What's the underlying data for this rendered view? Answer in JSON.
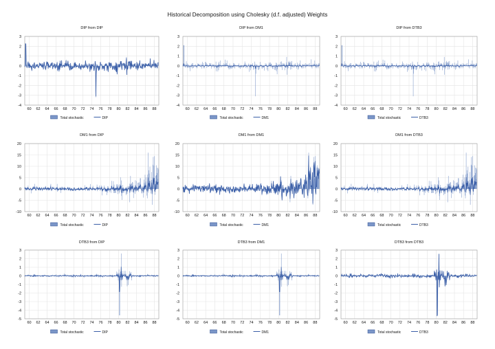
{
  "title": "Historical Decomposition using Cholesky (d.f. adjusted) Weights",
  "colors": {
    "bar": "#7b96c8",
    "line": "#3a5ea7",
    "grid": "#e4e4e4",
    "axis": "#9a9a9a"
  },
  "chart_data": [
    {
      "type": "bar+line",
      "title": "DIP from DIP",
      "row": 0,
      "col": 0,
      "ylim": [
        -4,
        3
      ],
      "yticks": [
        3,
        2,
        1,
        0,
        -1,
        -2,
        -3,
        -4
      ],
      "xticks": [
        "60",
        "62",
        "64",
        "66",
        "68",
        "70",
        "72",
        "74",
        "76",
        "78",
        "80",
        "82",
        "84",
        "86",
        "88"
      ],
      "x_range": [
        "1959",
        "1989"
      ],
      "legend": [
        "Total stochastic",
        "DIP"
      ],
      "series": [
        {
          "name": "Total stochastic",
          "kind": "bar",
          "amp": 0.35
        },
        {
          "name": "DIP",
          "kind": "line",
          "amp": 0.35
        }
      ],
      "notable": [
        {
          "x": 1974.9,
          "y": -3.2
        },
        {
          "x": 1959.2,
          "y": 2.3
        }
      ]
    },
    {
      "type": "bar+line",
      "title": "DIP from DM1",
      "row": 0,
      "col": 1,
      "ylim": [
        -4,
        3
      ],
      "yticks": [
        3,
        2,
        1,
        0,
        -1,
        -2,
        -3,
        -4
      ],
      "xticks": [
        "60",
        "62",
        "64",
        "66",
        "68",
        "70",
        "72",
        "74",
        "76",
        "78",
        "80",
        "82",
        "84",
        "86",
        "88"
      ],
      "x_range": [
        "1959",
        "1989"
      ],
      "legend": [
        "Total stochastic",
        "DM1"
      ],
      "series": [
        {
          "name": "Total stochastic",
          "kind": "bar",
          "amp": 0.35
        },
        {
          "name": "DM1",
          "kind": "line",
          "amp": 0.06
        }
      ],
      "notable": [
        {
          "x": 1974.9,
          "y": -3.1
        },
        {
          "x": 1959.2,
          "y": 2.1
        }
      ]
    },
    {
      "type": "bar+line",
      "title": "DIP from DTB3",
      "row": 0,
      "col": 2,
      "ylim": [
        -4,
        3
      ],
      "yticks": [
        3,
        2,
        1,
        0,
        -1,
        -2,
        -3,
        -4
      ],
      "xticks": [
        "60",
        "62",
        "64",
        "66",
        "68",
        "70",
        "72",
        "74",
        "76",
        "78",
        "80",
        "82",
        "84",
        "86",
        "88"
      ],
      "x_range": [
        "1959",
        "1989"
      ],
      "legend": [
        "Total stochastic",
        "DTB3"
      ],
      "series": [
        {
          "name": "Total stochastic",
          "kind": "bar",
          "amp": 0.35
        },
        {
          "name": "DTB3",
          "kind": "line",
          "amp": 0.06
        }
      ],
      "notable": [
        {
          "x": 1974.9,
          "y": -3.1
        },
        {
          "x": 1959.2,
          "y": 2.1
        }
      ]
    },
    {
      "type": "bar+line",
      "title": "DM1 from DIP",
      "row": 1,
      "col": 0,
      "ylim": [
        -10,
        20
      ],
      "yticks": [
        20,
        15,
        10,
        5,
        0,
        -5,
        -10
      ],
      "xticks": [
        "60",
        "62",
        "64",
        "66",
        "68",
        "70",
        "72",
        "74",
        "76",
        "78",
        "80",
        "82",
        "84",
        "86",
        "88"
      ],
      "x_range": [
        "1959",
        "1989"
      ],
      "legend": [
        "Total stochastic",
        "DIP"
      ],
      "series": [
        {
          "name": "Total stochastic",
          "kind": "bar",
          "amp": 0.9
        },
        {
          "name": "DIP",
          "kind": "line",
          "amp": 0.3
        }
      ],
      "notable": [
        {
          "x": 1986.6,
          "y": 16
        },
        {
          "x": 1987.5,
          "y": -7
        }
      ]
    },
    {
      "type": "bar+line",
      "title": "DM1 from DM1",
      "row": 1,
      "col": 1,
      "ylim": [
        -10,
        20
      ],
      "yticks": [
        20,
        15,
        10,
        5,
        0,
        -5,
        -10
      ],
      "xticks": [
        "60",
        "62",
        "64",
        "66",
        "68",
        "70",
        "72",
        "74",
        "76",
        "78",
        "80",
        "82",
        "84",
        "86",
        "88"
      ],
      "x_range": [
        "1959",
        "1989"
      ],
      "legend": [
        "Total stochastic",
        "DM1"
      ],
      "series": [
        {
          "name": "Total stochastic",
          "kind": "bar",
          "amp": 0.9
        },
        {
          "name": "DM1",
          "kind": "line",
          "amp": 0.8
        }
      ],
      "notable": [
        {
          "x": 1986.6,
          "y": 16
        },
        {
          "x": 1987.5,
          "y": -7
        }
      ]
    },
    {
      "type": "bar+line",
      "title": "DM1 from DTB3",
      "row": 1,
      "col": 2,
      "ylim": [
        -10,
        20
      ],
      "yticks": [
        20,
        15,
        10,
        5,
        0,
        -5,
        -10
      ],
      "xticks": [
        "60",
        "62",
        "64",
        "66",
        "68",
        "70",
        "72",
        "74",
        "76",
        "78",
        "80",
        "82",
        "84",
        "86",
        "88"
      ],
      "x_range": [
        "1959",
        "1989"
      ],
      "legend": [
        "Total stochastic",
        "DTB3"
      ],
      "series": [
        {
          "name": "Total stochastic",
          "kind": "bar",
          "amp": 0.9
        },
        {
          "name": "DTB3",
          "kind": "line",
          "amp": 0.3
        }
      ],
      "notable": [
        {
          "x": 1986.6,
          "y": 16
        },
        {
          "x": 1987.5,
          "y": -7
        }
      ]
    },
    {
      "type": "bar+line",
      "title": "DTB3 from DIP",
      "row": 2,
      "col": 0,
      "ylim": [
        -5,
        3
      ],
      "yticks": [
        3,
        2,
        1,
        0,
        -1,
        -2,
        -3,
        -4,
        -5
      ],
      "xticks": [
        "60",
        "62",
        "64",
        "66",
        "68",
        "70",
        "72",
        "74",
        "76",
        "78",
        "80",
        "82",
        "84",
        "86",
        "88"
      ],
      "x_range": [
        "1959",
        "1989"
      ],
      "legend": [
        "Total stochastic",
        "DIP"
      ],
      "series": [
        {
          "name": "Total stochastic",
          "kind": "bar",
          "amp": 0.2
        },
        {
          "name": "DIP",
          "kind": "line",
          "amp": 0.08
        }
      ],
      "notable": [
        {
          "x": 1980.2,
          "y": -4.6
        },
        {
          "x": 1980.6,
          "y": 2.6
        }
      ]
    },
    {
      "type": "bar+line",
      "title": "DTB3 from DM1",
      "row": 2,
      "col": 1,
      "ylim": [
        -5,
        3
      ],
      "yticks": [
        3,
        2,
        1,
        0,
        -1,
        -2,
        -3,
        -4,
        -5
      ],
      "xticks": [
        "60",
        "62",
        "64",
        "66",
        "68",
        "70",
        "72",
        "74",
        "76",
        "78",
        "80",
        "82",
        "84",
        "86",
        "88"
      ],
      "x_range": [
        "1959",
        "1989"
      ],
      "legend": [
        "Total stochastic",
        "DM1"
      ],
      "series": [
        {
          "name": "Total stochastic",
          "kind": "bar",
          "amp": 0.2
        },
        {
          "name": "DM1",
          "kind": "line",
          "amp": 0.08
        }
      ],
      "notable": [
        {
          "x": 1980.2,
          "y": -4.6
        },
        {
          "x": 1980.6,
          "y": 2.6
        }
      ]
    },
    {
      "type": "bar+line",
      "title": "DTB3 from DTB3",
      "row": 2,
      "col": 2,
      "ylim": [
        -5,
        3
      ],
      "yticks": [
        3,
        2,
        1,
        0,
        -1,
        -2,
        -3,
        -4,
        -5
      ],
      "xticks": [
        "60",
        "62",
        "64",
        "66",
        "68",
        "70",
        "72",
        "74",
        "76",
        "78",
        "80",
        "82",
        "84",
        "86",
        "88"
      ],
      "x_range": [
        "1959",
        "1989"
      ],
      "legend": [
        "Total stochastic",
        "DTB3"
      ],
      "series": [
        {
          "name": "Total stochastic",
          "kind": "bar",
          "amp": 0.2
        },
        {
          "name": "DTB3",
          "kind": "line",
          "amp": 0.3
        }
      ],
      "notable": [
        {
          "x": 1980.2,
          "y": -4.6
        },
        {
          "x": 1980.6,
          "y": 2.6
        }
      ]
    }
  ]
}
